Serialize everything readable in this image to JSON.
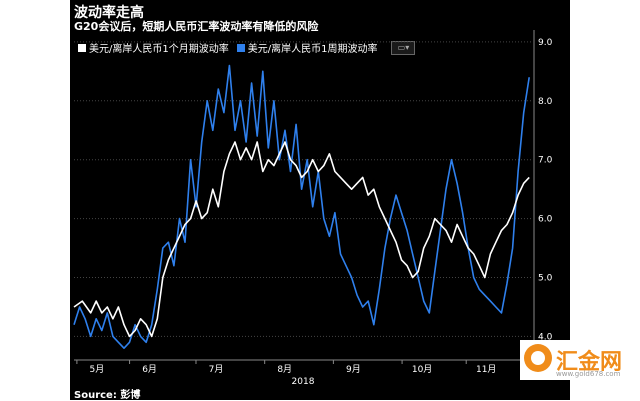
{
  "chart_data": {
    "type": "line",
    "title": "波动率走高",
    "subtitle": "G20会议后，短期人民币汇率波动率有降低的风险",
    "source": "Source: 彭博",
    "x_tick_labels": [
      "5月",
      "6月",
      "7月",
      "8月",
      "9月",
      "10月",
      "11月"
    ],
    "x_year_label": "2018",
    "y_ticks": [
      "9.0",
      "8.0",
      "7.0",
      "6.0",
      "5.0",
      "4.0"
    ],
    "ylim": [
      3.6,
      9.1
    ],
    "xlim": [
      0,
      165
    ],
    "grid": true,
    "legend_position": "top-left",
    "colors": {
      "white_series": "#ffffff",
      "blue_series": "#2f80ed",
      "background": "#000000"
    },
    "series": [
      {
        "name": "美元/离岸人民币1个月期波动率",
        "color": "#ffffff",
        "points": [
          [
            0,
            4.5
          ],
          [
            3,
            4.6
          ],
          [
            6,
            4.4
          ],
          [
            8,
            4.6
          ],
          [
            10,
            4.4
          ],
          [
            12,
            4.5
          ],
          [
            14,
            4.3
          ],
          [
            16,
            4.5
          ],
          [
            18,
            4.2
          ],
          [
            20,
            4.0
          ],
          [
            22,
            4.1
          ],
          [
            24,
            4.3
          ],
          [
            26,
            4.2
          ],
          [
            28,
            4.0
          ],
          [
            30,
            4.3
          ],
          [
            32,
            5.0
          ],
          [
            34,
            5.3
          ],
          [
            36,
            5.5
          ],
          [
            38,
            5.7
          ],
          [
            40,
            5.9
          ],
          [
            42,
            6.0
          ],
          [
            44,
            6.3
          ],
          [
            46,
            6.0
          ],
          [
            48,
            6.1
          ],
          [
            50,
            6.5
          ],
          [
            52,
            6.2
          ],
          [
            54,
            6.8
          ],
          [
            56,
            7.1
          ],
          [
            58,
            7.3
          ],
          [
            60,
            7.0
          ],
          [
            62,
            7.2
          ],
          [
            64,
            7.0
          ],
          [
            66,
            7.3
          ],
          [
            68,
            6.8
          ],
          [
            70,
            7.0
          ],
          [
            72,
            6.9
          ],
          [
            74,
            7.1
          ],
          [
            76,
            7.3
          ],
          [
            78,
            7.0
          ],
          [
            80,
            6.9
          ],
          [
            82,
            6.7
          ],
          [
            84,
            6.8
          ],
          [
            86,
            7.0
          ],
          [
            88,
            6.8
          ],
          [
            90,
            6.9
          ],
          [
            92,
            7.1
          ],
          [
            94,
            6.8
          ],
          [
            96,
            6.7
          ],
          [
            98,
            6.6
          ],
          [
            100,
            6.5
          ],
          [
            102,
            6.6
          ],
          [
            104,
            6.7
          ],
          [
            106,
            6.4
          ],
          [
            108,
            6.5
          ],
          [
            110,
            6.2
          ],
          [
            112,
            6.0
          ],
          [
            114,
            5.8
          ],
          [
            116,
            5.6
          ],
          [
            118,
            5.3
          ],
          [
            120,
            5.2
          ],
          [
            122,
            5.0
          ],
          [
            124,
            5.1
          ],
          [
            126,
            5.5
          ],
          [
            128,
            5.7
          ],
          [
            130,
            6.0
          ],
          [
            132,
            5.9
          ],
          [
            134,
            5.8
          ],
          [
            136,
            5.6
          ],
          [
            138,
            5.9
          ],
          [
            140,
            5.7
          ],
          [
            142,
            5.5
          ],
          [
            144,
            5.4
          ],
          [
            146,
            5.2
          ],
          [
            148,
            5.0
          ],
          [
            150,
            5.4
          ],
          [
            152,
            5.6
          ],
          [
            154,
            5.8
          ],
          [
            156,
            5.9
          ],
          [
            158,
            6.1
          ],
          [
            160,
            6.4
          ],
          [
            162,
            6.6
          ],
          [
            164,
            6.7
          ]
        ]
      },
      {
        "name": "美元/离岸人民币1周期波动率",
        "color": "#2f80ed",
        "points": [
          [
            0,
            4.2
          ],
          [
            2,
            4.5
          ],
          [
            4,
            4.3
          ],
          [
            6,
            4.0
          ],
          [
            8,
            4.3
          ],
          [
            10,
            4.1
          ],
          [
            12,
            4.4
          ],
          [
            14,
            4.0
          ],
          [
            16,
            3.9
          ],
          [
            18,
            3.8
          ],
          [
            20,
            3.9
          ],
          [
            22,
            4.2
          ],
          [
            24,
            4.0
          ],
          [
            26,
            3.9
          ],
          [
            28,
            4.2
          ],
          [
            30,
            4.8
          ],
          [
            32,
            5.5
          ],
          [
            34,
            5.6
          ],
          [
            36,
            5.2
          ],
          [
            38,
            6.0
          ],
          [
            40,
            5.6
          ],
          [
            42,
            7.0
          ],
          [
            44,
            6.2
          ],
          [
            46,
            7.3
          ],
          [
            48,
            8.0
          ],
          [
            50,
            7.5
          ],
          [
            52,
            8.2
          ],
          [
            54,
            7.8
          ],
          [
            56,
            8.6
          ],
          [
            58,
            7.5
          ],
          [
            60,
            8.0
          ],
          [
            62,
            7.3
          ],
          [
            64,
            8.3
          ],
          [
            66,
            7.4
          ],
          [
            68,
            8.5
          ],
          [
            70,
            7.2
          ],
          [
            72,
            8.0
          ],
          [
            74,
            7.0
          ],
          [
            76,
            7.5
          ],
          [
            78,
            6.8
          ],
          [
            80,
            7.6
          ],
          [
            82,
            6.5
          ],
          [
            84,
            7.0
          ],
          [
            86,
            6.2
          ],
          [
            88,
            6.8
          ],
          [
            90,
            6.0
          ],
          [
            92,
            5.7
          ],
          [
            94,
            6.1
          ],
          [
            96,
            5.4
          ],
          [
            98,
            5.2
          ],
          [
            100,
            5.0
          ],
          [
            102,
            4.7
          ],
          [
            104,
            4.5
          ],
          [
            106,
            4.6
          ],
          [
            108,
            4.2
          ],
          [
            110,
            4.8
          ],
          [
            112,
            5.5
          ],
          [
            114,
            6.0
          ],
          [
            116,
            6.4
          ],
          [
            118,
            6.1
          ],
          [
            120,
            5.8
          ],
          [
            122,
            5.4
          ],
          [
            124,
            5.0
          ],
          [
            126,
            4.6
          ],
          [
            128,
            4.4
          ],
          [
            130,
            5.1
          ],
          [
            132,
            5.8
          ],
          [
            134,
            6.5
          ],
          [
            136,
            7.0
          ],
          [
            138,
            6.6
          ],
          [
            140,
            6.1
          ],
          [
            142,
            5.5
          ],
          [
            144,
            5.0
          ],
          [
            146,
            4.8
          ],
          [
            148,
            4.7
          ],
          [
            150,
            4.6
          ],
          [
            152,
            4.5
          ],
          [
            154,
            4.4
          ],
          [
            156,
            4.9
          ],
          [
            158,
            5.5
          ],
          [
            160,
            6.8
          ],
          [
            162,
            7.8
          ],
          [
            164,
            8.4
          ]
        ]
      }
    ]
  },
  "watermark": {
    "brand": "汇金网",
    "url": "www.gold678.com"
  }
}
